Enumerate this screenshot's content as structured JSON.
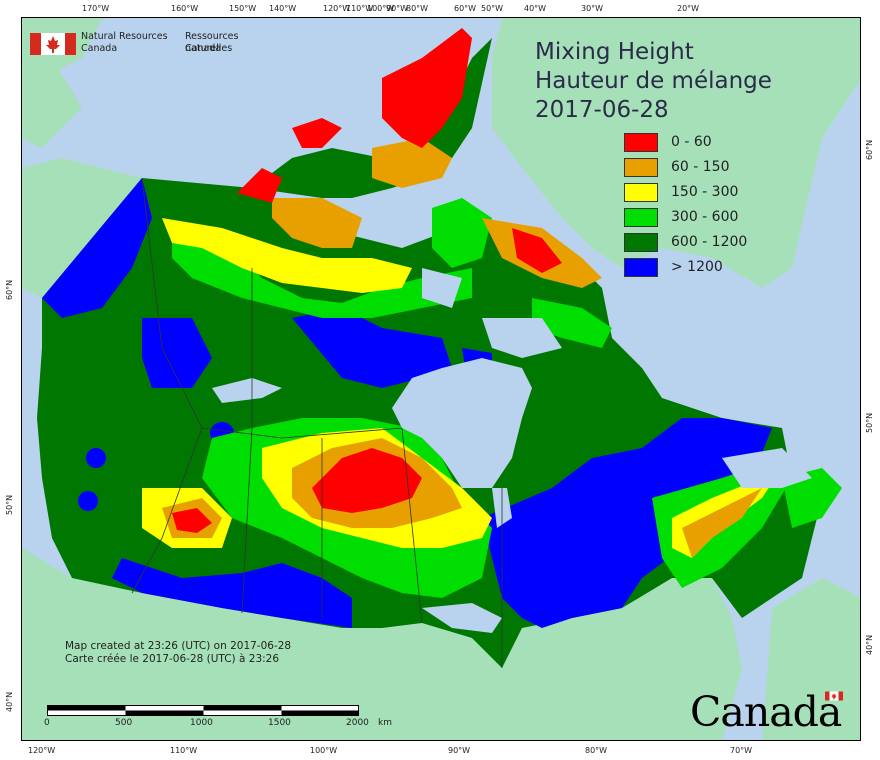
{
  "agency": {
    "name_en_line1": "Natural Resources",
    "name_en_line2": "Canada",
    "name_fr_line1": "Ressources naturelles",
    "name_fr_line2": "Canada"
  },
  "title": {
    "line_en": "Mixing Height",
    "line_fr": "Hauteur de mélange",
    "date": "2017-06-28"
  },
  "legend": [
    {
      "label": "0 - 60",
      "color": "#ff0000"
    },
    {
      "label": "60 - 150",
      "color": "#e8a000"
    },
    {
      "label": "150 - 300",
      "color": "#ffff00"
    },
    {
      "label": "300 - 600",
      "color": "#00dd00"
    },
    {
      "label": "600 - 1200",
      "color": "#007700"
    },
    {
      "label": "> 1200",
      "color": "#0000ff"
    }
  ],
  "colors": {
    "ocean": "#b9d3ee",
    "foreign_land": "#a6e0b8",
    "lakes": "#b9d3ee"
  },
  "ticks": {
    "top": [
      "170°W",
      "160°W",
      "150°W",
      "140°W",
      "120°W",
      "110°W",
      "100°W",
      "90°W",
      "80°W",
      "60°W",
      "50°W",
      "40°W",
      "30°W",
      "20°W"
    ],
    "bottom": [
      "120°W",
      "110°W",
      "100°W",
      "90°W",
      "80°W",
      "70°W"
    ],
    "left": [
      "60°N",
      "50°N",
      "40°N"
    ],
    "right": [
      "60°N",
      "50°N",
      "40°N"
    ]
  },
  "credit": {
    "line_en": "Map created at 23:26 (UTC) on 2017-06-28",
    "line_fr": "Carte créée le 2017-06-28 (UTC) à 23:26"
  },
  "scale": {
    "labels": [
      "0",
      "500",
      "1000",
      "1500",
      "2000"
    ],
    "unit": "km"
  },
  "wordmark": "Canada"
}
